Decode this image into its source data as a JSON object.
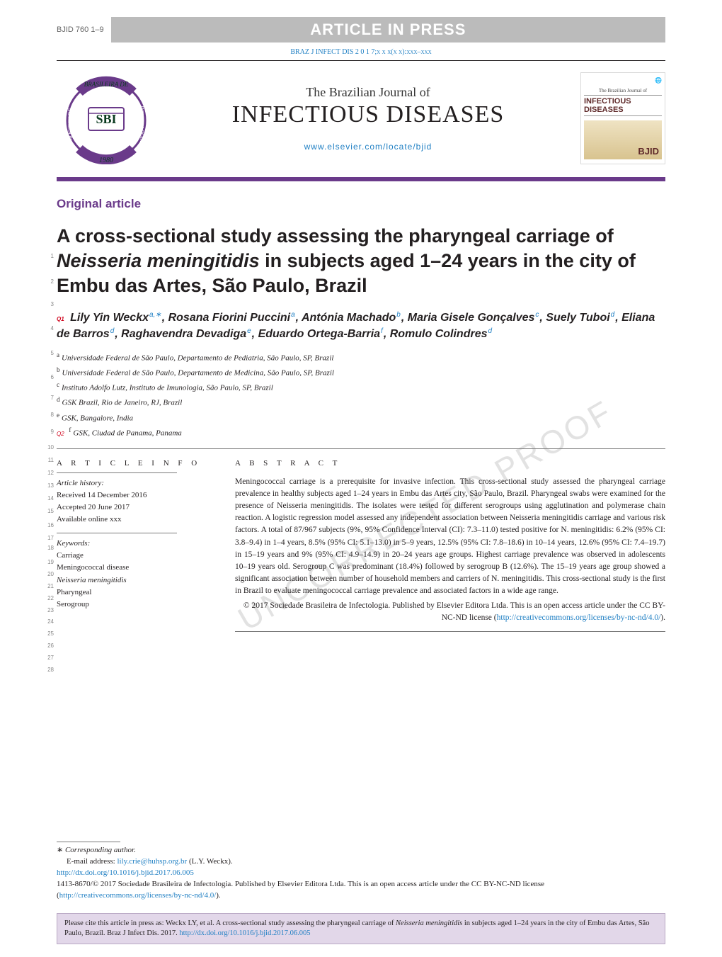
{
  "header": {
    "article_code": "BJID 760 1–9",
    "in_press_banner": "ARTICLE IN PRESS",
    "citation_line": "BRAZ J INFECT DIS 2 0 1 7;x x x(x x):xxx–xxx",
    "journal_super": "The Brazilian Journal of",
    "journal_title": "INFECTIOUS DISEASES",
    "journal_link": "www.elsevier.com/locate/bjid",
    "logo_right": {
      "small": "The Brazilian Journal of",
      "main": "INFECTIOUS DISEASES",
      "bjid": "BJID"
    }
  },
  "article_type": "Original article",
  "title": "A cross-sectional study assessing the pharyngeal carriage of Neisseria meningitidis in subjects aged 1–24 years in the city of Embu das Artes, São Paulo, Brazil",
  "q_labels": {
    "q1": "Q1",
    "q2": "Q2"
  },
  "authors_html": "Lily Yin Weckx<sup>a,∗</sup>, Rosana Fiorini Puccini<sup>a</sup>, Antónia Machado<sup>b</sup>, Maria Gisele Gonçalves<sup>c</sup>, Suely Tuboi<sup>d</sup>, Eliana de Barros<sup>d</sup>, Raghavendra Devadiga<sup>e</sup>, Eduardo Ortega-Barria<sup>f</sup>, Romulo Colindres<sup>d</sup>",
  "affiliations": [
    {
      "sup": "a",
      "text": "Universidade Federal de São Paulo, Departamento de Pediatria, São Paulo, SP, Brazil"
    },
    {
      "sup": "b",
      "text": "Universidade Federal de São Paulo, Departamento de Medicina, São Paulo, SP, Brazil"
    },
    {
      "sup": "c",
      "text": "Instituto Adolfo Lutz, Instituto de Imunologia, São Paulo, SP, Brazil"
    },
    {
      "sup": "d",
      "text": "GSK Brazil, Rio de Janeiro, RJ, Brazil"
    },
    {
      "sup": "e",
      "text": "GSK, Bangalore, India"
    },
    {
      "sup": "f",
      "text": "GSK, Ciudad de Panama, Panama"
    }
  ],
  "info": {
    "heading": "A R T I C L E   I N F O",
    "history_label": "Article history:",
    "received": "Received 14 December 2016",
    "accepted": "Accepted 20 June 2017",
    "online": "Available online xxx",
    "keywords_label": "Keywords:",
    "keywords": [
      "Carriage",
      "Meningococcal disease",
      "Neisseria meningitidis",
      "Pharyngeal",
      "Serogroup"
    ]
  },
  "abstract": {
    "heading": "A B S T R A C T",
    "body": "Meningococcal carriage is a prerequisite for invasive infection. This cross-sectional study assessed the pharyngeal carriage prevalence in healthy subjects aged 1–24 years in Embu das Artes city, São Paulo, Brazil. Pharyngeal swabs were examined for the presence of Neisseria meningitidis. The isolates were tested for different serogroups using agglutination and polymerase chain reaction. A logistic regression model assessed any independent association between Neisseria meningitidis carriage and various risk factors. A total of 87/967 subjects (9%, 95% Confidence Interval (CI): 7.3–11.0) tested positive for N. meningitidis: 6.2% (95% CI: 3.8–9.4) in 1–4 years, 8.5% (95% CI: 5.1–13.0) in 5–9 years, 12.5% (95% CI: 7.8–18.6) in 10–14 years, 12.6% (95% CI: 7.4–19.7) in 15–19 years and 9% (95% CI: 4.9–14.9) in 20–24 years age groups. Highest carriage prevalence was observed in adolescents 10–19 years old. Serogroup C was predominant (18.4%) followed by serogroup B (12.6%). The 15–19 years age group showed a significant association between number of household members and carriers of N. meningitidis. This cross-sectional study is the first in Brazil to evaluate meningococcal carriage prevalence and associated factors in a wide age range.",
    "copy": "© 2017 Sociedade Brasileira de Infectologia. Published by Elsevier Editora Ltda. This is an open access article under the CC BY-NC-ND license (",
    "copy_link": "http://creativecommons.org/licenses/by-nc-nd/4.0/",
    "copy_end": ")."
  },
  "corr": {
    "star": "∗",
    "label": "Corresponding author.",
    "email_label": "E-mail address: ",
    "email": "lily.crie@huhsp.org.br",
    "email_name": " (L.Y. Weckx).",
    "doi": "http://dx.doi.org/10.1016/j.bjid.2017.06.005",
    "issn_line": "1413-8670/© 2017 Sociedade Brasileira de Infectologia. Published by Elsevier Editora Ltda. This is an open access article under the CC BY-NC-ND license (",
    "issn_link": "http://creativecommons.org/licenses/by-nc-nd/4.0/",
    "issn_end": ")."
  },
  "cite_box": {
    "prefix": "Please cite this article in press as: Weckx LY, et al. A cross-sectional study assessing the pharyngeal carriage of ",
    "italic1": "Neisseria meningitidis",
    "mid": " in subjects aged 1–24 years in the city of Embu das Artes, São Paulo, Brazil. Braz J Infect Dis. 2017. ",
    "link": "http://dx.doi.org/10.1016/j.bjid.2017.06.005"
  },
  "line_numbers": {
    "start": 1,
    "end": 28
  },
  "watermark": "UNCORRECTED PROOF",
  "colors": {
    "purple": "#6a3a8a",
    "link": "#2180c4",
    "banner_bg": "#bbbbbb",
    "banner_fg": "#ffffff",
    "citebox_bg": "#e2d7e9"
  }
}
